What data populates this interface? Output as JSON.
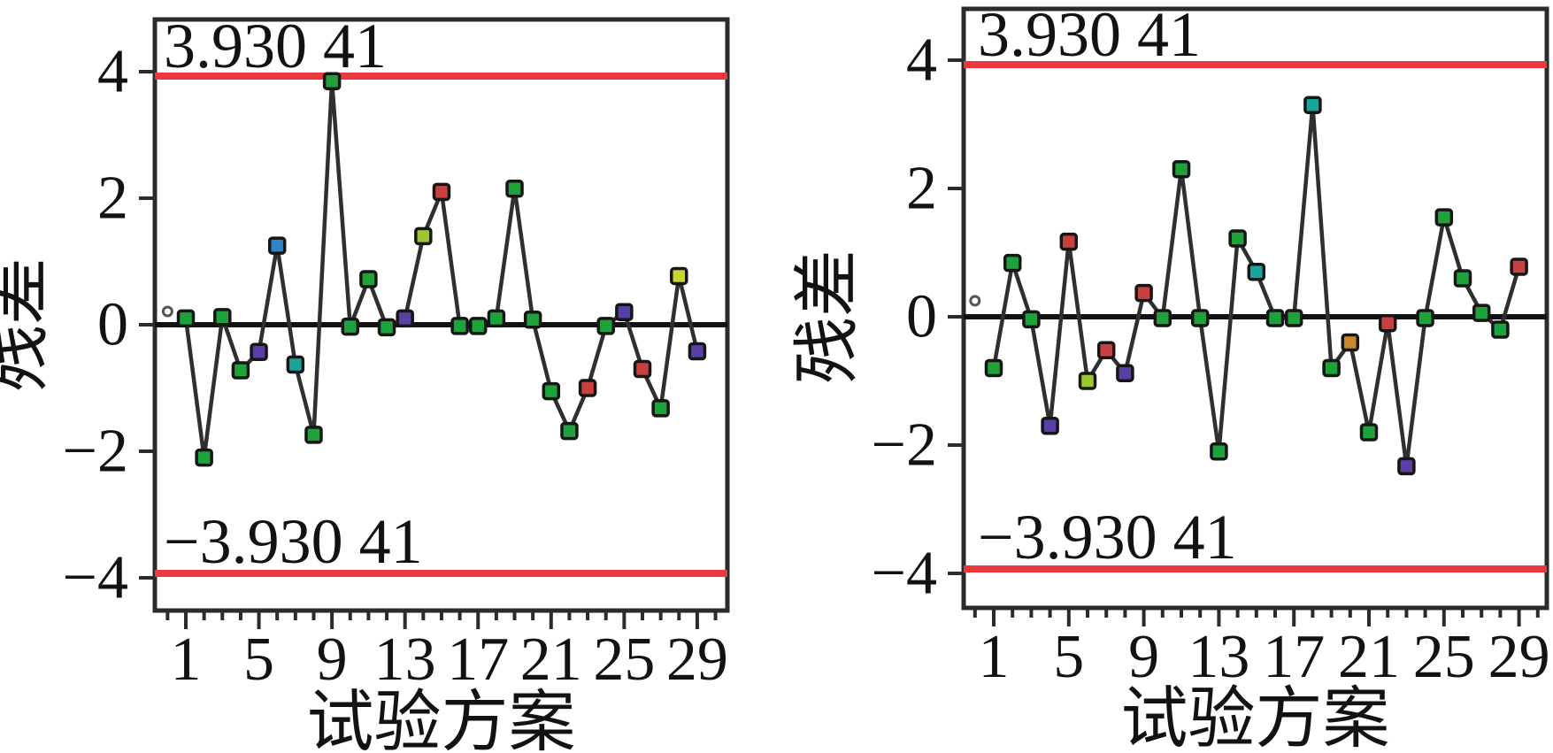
{
  "figure": {
    "background": "#ffffff"
  },
  "colors": {
    "frame": "#2b2b2b",
    "series_line": "#2f2f2f",
    "zero_line": "#121212",
    "limit_line": "#e8393f",
    "text": "#121212",
    "marker_border": "#161616",
    "origin_marker_stroke": "#555555",
    "palette": {
      "green": "#1da23c",
      "purple": "#5a3fa6",
      "blue": "#2e86c8",
      "teal": "#17a79a",
      "red": "#c84040",
      "yellow": "#ccd42e",
      "yellowgreen": "#9cc733",
      "orange": "#c8882e"
    }
  },
  "chart_data": [
    {
      "type": "line",
      "panel": "left",
      "ylabel": "残差",
      "xlabel": "试验方案",
      "upper_limit": 3.93041,
      "lower_limit": -3.93041,
      "upper_limit_label": "3.930 41",
      "lower_limit_label": "−3.930 41",
      "ylim": [
        -4.8,
        4.8
      ],
      "xtick_values": [
        1,
        5,
        9,
        13,
        17,
        21,
        25,
        29
      ],
      "xtick_labels": [
        "1",
        "5",
        "9",
        "13",
        "17",
        "21",
        "25",
        "29"
      ],
      "ytick_values": [
        4,
        2,
        0,
        -2,
        -4
      ],
      "ytick_labels": [
        "4",
        "2",
        "0",
        "−2",
        "−4"
      ],
      "minor_tick_range": [
        0,
        30
      ],
      "x": [
        1,
        2,
        3,
        4,
        5,
        6,
        7,
        8,
        9,
        10,
        11,
        12,
        13,
        14,
        15,
        16,
        17,
        18,
        19,
        20,
        21,
        22,
        23,
        24,
        25,
        26,
        27,
        28,
        29
      ],
      "values": [
        0.1,
        -2.1,
        0.12,
        -0.72,
        -0.43,
        1.25,
        -0.63,
        -1.74,
        3.85,
        -0.03,
        0.72,
        -0.04,
        0.1,
        1.4,
        2.1,
        -0.02,
        -0.02,
        0.1,
        2.15,
        0.08,
        -1.05,
        -1.68,
        -1.0,
        -0.02,
        0.2,
        -0.7,
        -1.32,
        0.77,
        -0.42
      ],
      "marker_colors": [
        "green",
        "green",
        "green",
        "green",
        "purple",
        "blue",
        "teal",
        "green",
        "green",
        "green",
        "green",
        "green",
        "purple",
        "yellowgreen",
        "red",
        "green",
        "green",
        "green",
        "green",
        "green",
        "green",
        "green",
        "red",
        "green",
        "purple",
        "red",
        "green",
        "yellow",
        "purple"
      ],
      "origin_point": {
        "x": 0,
        "value": 0.21
      }
    },
    {
      "type": "line",
      "panel": "right",
      "ylabel": "残差",
      "xlabel": "试验方案",
      "upper_limit": 3.93041,
      "lower_limit": -3.93041,
      "upper_limit_label": "3.930 41",
      "lower_limit_label": "−3.930 41",
      "ylim": [
        -4.8,
        4.8
      ],
      "xtick_values": [
        1,
        5,
        9,
        13,
        17,
        21,
        25,
        29
      ],
      "xtick_labels": [
        "1",
        "5",
        "9",
        "13",
        "17",
        "21",
        "25",
        "29"
      ],
      "ytick_values": [
        4,
        2,
        0,
        -2,
        -4
      ],
      "ytick_labels": [
        "4",
        "2",
        "0",
        "−2",
        "−4"
      ],
      "minor_tick_range": [
        0,
        30
      ],
      "x": [
        1,
        2,
        3,
        4,
        5,
        6,
        7,
        8,
        9,
        10,
        11,
        12,
        13,
        14,
        15,
        16,
        17,
        18,
        19,
        20,
        21,
        22,
        23,
        24,
        25,
        26,
        27,
        28,
        29
      ],
      "values": [
        -0.8,
        0.84,
        -0.04,
        -1.7,
        1.17,
        -1.0,
        -0.52,
        -0.88,
        0.37,
        -0.02,
        2.3,
        -0.02,
        -2.1,
        1.22,
        0.7,
        -0.02,
        -0.02,
        3.3,
        -0.8,
        -0.4,
        -1.8,
        -0.1,
        -2.33,
        -0.02,
        1.55,
        0.6,
        0.06,
        -0.2,
        0.78
      ],
      "marker_colors": [
        "green",
        "green",
        "green",
        "purple",
        "red",
        "yellowgreen",
        "red",
        "purple",
        "red",
        "green",
        "green",
        "green",
        "green",
        "green",
        "teal",
        "green",
        "green",
        "teal",
        "green",
        "orange",
        "green",
        "red",
        "purple",
        "green",
        "green",
        "green",
        "green",
        "green",
        "red"
      ],
      "origin_point": {
        "x": 0,
        "value": 0.25
      }
    }
  ]
}
